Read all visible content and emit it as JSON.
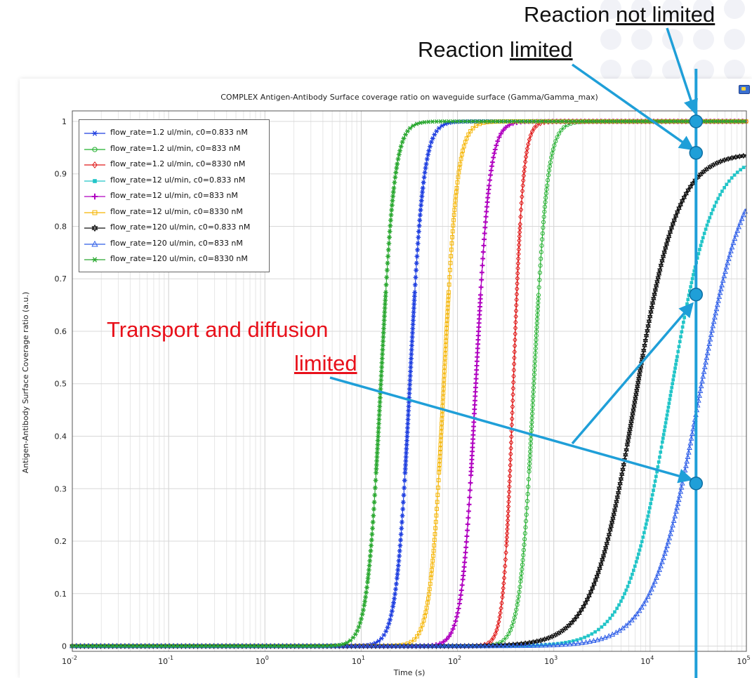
{
  "annotations": {
    "not_limited_prefix": "Reaction ",
    "not_limited_underlined": "not limited",
    "limited_prefix": "Reaction ",
    "limited_underlined": "limited",
    "transport_line1": "Transport and diffusion",
    "transport_line2": "limited"
  },
  "colors": {
    "annotation_blue": "#1f9fd8",
    "transport_red": "#e8101a"
  },
  "chart_data": {
    "type": "scatter",
    "title": "COMPLEX Antigen-Antibody Surface coverage ratio on waveguide surface (Gamma/Gamma_max)",
    "xlabel": "Time (s)",
    "ylabel": "Antigen-Antibody Surface Coverage ratio (a.u.)",
    "xscale": "log",
    "xlim": [
      0.01,
      100000
    ],
    "ylim": [
      -0.01,
      1.02
    ],
    "grid": true,
    "legend_position": "top-left",
    "xticks": [
      {
        "base": "10",
        "exp": "-2",
        "value": 0.01
      },
      {
        "base": "10",
        "exp": "-1",
        "value": 0.1
      },
      {
        "base": "10",
        "exp": "0",
        "value": 1
      },
      {
        "base": "10",
        "exp": "1",
        "value": 10
      },
      {
        "base": "10",
        "exp": "2",
        "value": 100
      },
      {
        "base": "10",
        "exp": "3",
        "value": 1000
      },
      {
        "base": "10",
        "exp": "4",
        "value": 10000
      },
      {
        "base": "10",
        "exp": "5",
        "value": 100000
      }
    ],
    "yticks": [
      "0",
      "0.1",
      "0.2",
      "0.3",
      "0.4",
      "0.5",
      "0.6",
      "0.7",
      "0.8",
      "0.9",
      "1"
    ],
    "ytick_values": [
      0,
      0.1,
      0.2,
      0.3,
      0.4,
      0.5,
      0.6,
      0.7,
      0.8,
      0.9,
      1
    ],
    "series": [
      {
        "name": "flow_rate=1.2 ul/min, c0=0.833 nM",
        "color": "#1f3fe0",
        "marker": "asterisk",
        "x_half": 32,
        "steepness": 0.07,
        "final": 1.0
      },
      {
        "name": "flow_rate=1.2 ul/min, c0=833 nM",
        "color": "#22b02e",
        "marker": "circle",
        "x_half": 620,
        "steepness": 0.07,
        "final": 1.0
      },
      {
        "name": "flow_rate=1.2 ul/min, c0=8330 nM",
        "color": "#e01b1b",
        "marker": "diamond",
        "x_half": 380,
        "steepness": 0.05,
        "final": 1.0
      },
      {
        "name": "flow_rate=12 ul/min, c0=0.833 nM",
        "color": "#22c5c8",
        "marker": "square-filled",
        "x_half": 16000,
        "steepness": 0.22,
        "final": 0.94
      },
      {
        "name": "flow_rate=12 ul/min, c0=833 nM",
        "color": "#b000c0",
        "marker": "plus",
        "x_half": 155,
        "steepness": 0.07,
        "final": 1.0
      },
      {
        "name": "flow_rate=12 ul/min, c0=8330 nM",
        "color": "#f5b400",
        "marker": "square",
        "x_half": 72,
        "steepness": 0.07,
        "final": 1.0
      },
      {
        "name": "flow_rate=120 ul/min, c0=0.833 nM",
        "color": "#111111",
        "marker": "star-open",
        "x_half": 7000,
        "steepness": 0.22,
        "final": 0.94
      },
      {
        "name": "flow_rate=120 ul/min, c0=833 nM",
        "color": "#2e5ee8",
        "marker": "triangle",
        "x_half": 32000,
        "steepness": 0.24,
        "final": 0.94
      },
      {
        "name": "flow_rate=120 ul/min, c0=8330 nM",
        "color": "#2aa830",
        "marker": "asterisk",
        "x_half": 16,
        "steepness": 0.07,
        "final": 1.0
      }
    ],
    "highlight_time": 30000,
    "highlight_points": [
      {
        "x": 30000,
        "y": 1.0
      },
      {
        "x": 30000,
        "y": 0.94
      },
      {
        "x": 30000,
        "y": 0.67
      },
      {
        "x": 30000,
        "y": 0.31
      }
    ]
  }
}
